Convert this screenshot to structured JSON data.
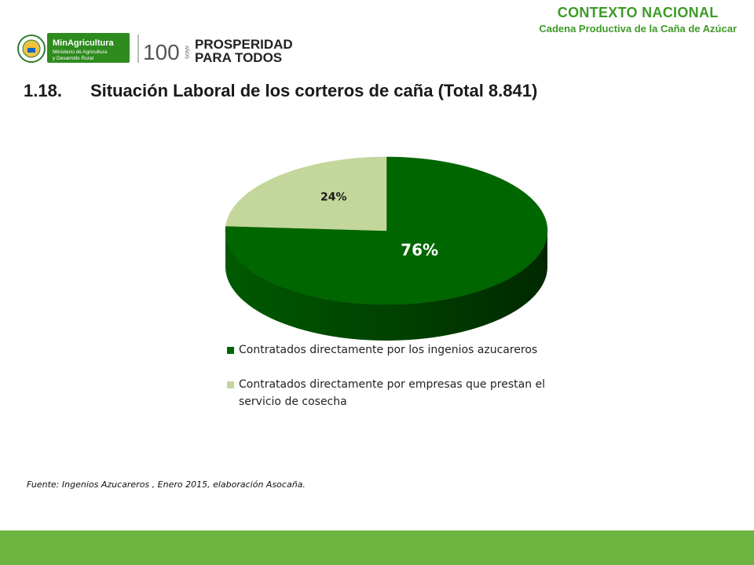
{
  "header": {
    "section_title": "CONTEXTO NACIONAL",
    "section_subtitle": "Cadena Productiva de la Caña de Azúcar"
  },
  "logos": {
    "ministry_name": "MinAgricultura",
    "ministry_line2": "Ministerio de Agricultura",
    "ministry_line3": "y Desarrollo Rural",
    "anniversary_number": "100",
    "anniversary_word": "AÑOS",
    "slogan_line1": "PROSPERIDAD",
    "slogan_line2": "PARA TODOS"
  },
  "slide": {
    "number": "1.18.",
    "title": "Situación Laboral de los corteros  de caña (Total 8.841)"
  },
  "chart_data": {
    "type": "pie",
    "title": "",
    "slices": [
      {
        "label": "Contratados directamente por los ingenios azucareros",
        "value": 76,
        "display": "76%",
        "color": "#006600"
      },
      {
        "label": "Contratados directamente por empresas que prestan el servicio de cosecha",
        "value": 24,
        "display": "24%",
        "color": "#c3d69b"
      }
    ],
    "legend_position": "bottom",
    "legend_lines": [
      [
        "Contratados directamente por los ingenios azucareros"
      ],
      [
        "Contratados directamente por empresas que prestan el",
        "servicio de cosecha"
      ]
    ]
  },
  "source": "Fuente: Ingenios Azucareros , Enero 2015,  elaboración Asocaña.",
  "colors": {
    "accent_green": "#3f9a28",
    "bottom_bar": "#6db33f"
  }
}
